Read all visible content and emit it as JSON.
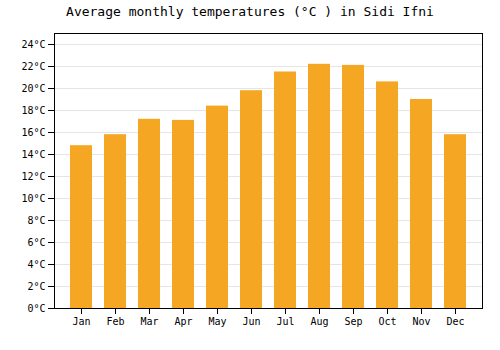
{
  "chart_data": {
    "type": "bar",
    "title": "Average monthly temperatures (°C ) in Sidi Ifni",
    "categories": [
      "Jan",
      "Feb",
      "Mar",
      "Apr",
      "May",
      "Jun",
      "Jul",
      "Aug",
      "Sep",
      "Oct",
      "Nov",
      "Dec"
    ],
    "values": [
      14.8,
      15.8,
      17.2,
      17.1,
      18.4,
      19.8,
      21.5,
      22.2,
      22.1,
      20.6,
      19.0,
      15.8
    ],
    "color": "#F5A623",
    "ylim": [
      0,
      25
    ],
    "yticks": [
      {
        "value": 0,
        "label": "0°C"
      },
      {
        "value": 2,
        "label": "2°C"
      },
      {
        "value": 4,
        "label": "4°C"
      },
      {
        "value": 6,
        "label": "6°C"
      },
      {
        "value": 8,
        "label": "8°C"
      },
      {
        "value": 10,
        "label": "10°C"
      },
      {
        "value": 12,
        "label": "12°C"
      },
      {
        "value": 14,
        "label": "14°C"
      },
      {
        "value": 16,
        "label": "16°C"
      },
      {
        "value": 18,
        "label": "18°C"
      },
      {
        "value": 20,
        "label": "20°C"
      },
      {
        "value": 22,
        "label": "22°C"
      },
      {
        "value": 24,
        "label": "24°C"
      }
    ],
    "grid": true
  }
}
